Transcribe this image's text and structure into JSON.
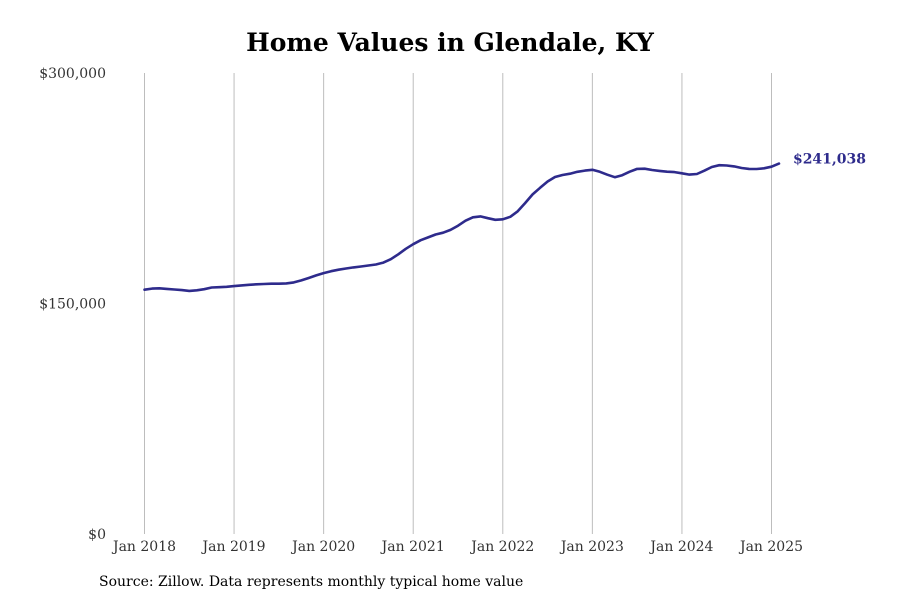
{
  "chart_data": {
    "type": "line",
    "title": "Home Values in Glendale, KY",
    "xlabel": "",
    "ylabel": "",
    "ylim": [
      0,
      300000
    ],
    "y_ticks": [
      {
        "value": 0,
        "label": "$0"
      },
      {
        "value": 150000,
        "label": "$150,000"
      },
      {
        "value": 300000,
        "label": "$300,000"
      }
    ],
    "x_ticks": [
      {
        "value": "2018-01",
        "label": "Jan 2018"
      },
      {
        "value": "2019-01",
        "label": "Jan 2019"
      },
      {
        "value": "2020-01",
        "label": "Jan 2020"
      },
      {
        "value": "2021-01",
        "label": "Jan 2021"
      },
      {
        "value": "2022-01",
        "label": "Jan 2022"
      },
      {
        "value": "2023-01",
        "label": "Jan 2023"
      },
      {
        "value": "2024-01",
        "label": "Jan 2024"
      },
      {
        "value": "2025-01",
        "label": "Jan 2025"
      }
    ],
    "x_range": [
      "2018-01",
      "2025-02"
    ],
    "grid": {
      "vertical": true,
      "horizontal": false
    },
    "series": [
      {
        "color": "#2e2b8c",
        "end_label": "$241,038",
        "x": [
          "2018-01",
          "2018-02",
          "2018-03",
          "2018-04",
          "2018-05",
          "2018-06",
          "2018-07",
          "2018-08",
          "2018-09",
          "2018-10",
          "2018-11",
          "2018-12",
          "2019-01",
          "2019-02",
          "2019-03",
          "2019-04",
          "2019-05",
          "2019-06",
          "2019-07",
          "2019-08",
          "2019-09",
          "2019-10",
          "2019-11",
          "2019-12",
          "2020-01",
          "2020-02",
          "2020-03",
          "2020-04",
          "2020-05",
          "2020-06",
          "2020-07",
          "2020-08",
          "2020-09",
          "2020-10",
          "2020-11",
          "2020-12",
          "2021-01",
          "2021-02",
          "2021-03",
          "2021-04",
          "2021-05",
          "2021-06",
          "2021-07",
          "2021-08",
          "2021-09",
          "2021-10",
          "2021-11",
          "2021-12",
          "2022-01",
          "2022-02",
          "2022-03",
          "2022-04",
          "2022-05",
          "2022-06",
          "2022-07",
          "2022-08",
          "2022-09",
          "2022-10",
          "2022-11",
          "2022-12",
          "2023-01",
          "2023-02",
          "2023-03",
          "2023-04",
          "2023-05",
          "2023-06",
          "2023-07",
          "2023-08",
          "2023-09",
          "2023-10",
          "2023-11",
          "2023-12",
          "2024-01",
          "2024-02",
          "2024-03",
          "2024-04",
          "2024-05",
          "2024-06",
          "2024-07",
          "2024-08",
          "2024-09",
          "2024-10",
          "2024-11",
          "2024-12",
          "2025-01",
          "2025-02"
        ],
        "values": [
          159000,
          159700,
          159900,
          159500,
          159100,
          158700,
          158200,
          158600,
          159300,
          160400,
          160600,
          160900,
          161300,
          161800,
          162200,
          162500,
          162700,
          162900,
          162900,
          163100,
          163700,
          165000,
          166600,
          168300,
          169800,
          171000,
          172000,
          172800,
          173500,
          174100,
          174700,
          175400,
          176600,
          178800,
          182000,
          185600,
          188600,
          191200,
          193000,
          194900,
          196100,
          197900,
          200600,
          203900,
          206100,
          206700,
          205500,
          204500,
          204800,
          206400,
          210000,
          215400,
          221000,
          225300,
          229400,
          232300,
          233600,
          234500,
          235700,
          236500,
          237000,
          235700,
          233800,
          232200,
          233500,
          235800,
          237600,
          237700,
          236900,
          236300,
          235800,
          235500,
          234700,
          233900,
          234300,
          236400,
          238800,
          240000,
          239800,
          239200,
          238200,
          237600,
          237500,
          238000,
          239000,
          241038
        ]
      }
    ]
  },
  "footer": {
    "source": "Source: Zillow. Data represents monthly typical home value"
  }
}
